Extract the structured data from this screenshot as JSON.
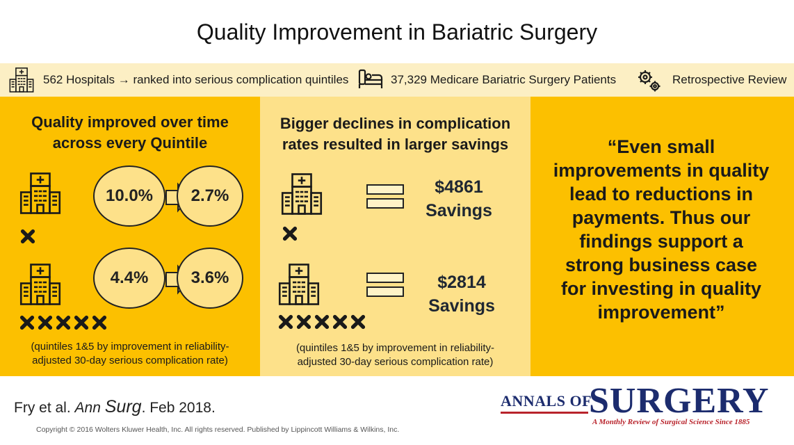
{
  "title": "Quality Improvement in Bariatric Surgery",
  "info_bar": {
    "hospitals_text": "562 Hospitals → ranked into serious complication quintiles",
    "patients_text": "37,329 Medicare Bariatric Surgery Patients",
    "review_text": "Retrospective Review"
  },
  "left_panel": {
    "heading_line1": "Quality improved over time",
    "heading_line2": "across every Quintile",
    "row1": {
      "before": "10.0%",
      "after": "2.7%"
    },
    "row2": {
      "before": "4.4%",
      "after": "3.6%"
    },
    "note_line1": "(quintiles 1&5 by improvement in reliability-",
    "note_line2": "adjusted 30-day serious complication rate)"
  },
  "mid_panel": {
    "heading_line1": "Bigger declines in complication",
    "heading_line2": "rates resulted in larger savings",
    "row1": {
      "amount": "$4861",
      "label": "Savings"
    },
    "row2": {
      "amount": "$2814",
      "label": "Savings"
    },
    "note_line1": "(quintiles 1&5 by improvement in reliability-",
    "note_line2": "adjusted 30-day serious complication rate)"
  },
  "quote": {
    "line1": "“Even small",
    "line2": "improvements in quality",
    "line3": "lead to reductions in",
    "line4": "payments. Thus our",
    "line5": "findings support a",
    "line6": "strong business case",
    "line7": "for investing in quality",
    "line8": "improvement”"
  },
  "footer": {
    "authors": "Fry et al.",
    "journal_part1": "Ann",
    "journal_part2": "Surg",
    "date": ". Feb 2018.",
    "copyright": "Copyright © 2016 Wolters Kluwer Health, Inc. All rights reserved.  Published by Lippincott Williams & Wilkins, Inc."
  },
  "logo": {
    "annals": "ANNALS OF",
    "surgery": "SURGERY",
    "tagline": "A Monthly Review of Surgical Science Since 1885"
  },
  "icons": [
    "hospital-icon",
    "hospital-bed-icon",
    "gears-icon",
    "arrow-right-icon",
    "x-mark-icon",
    "equals-icon"
  ],
  "colors": {
    "gold": "#fcc000",
    "light_gold": "#fde18a",
    "cream": "#fcefc4",
    "navy": "#1c2c6e",
    "red": "#b8232b"
  }
}
